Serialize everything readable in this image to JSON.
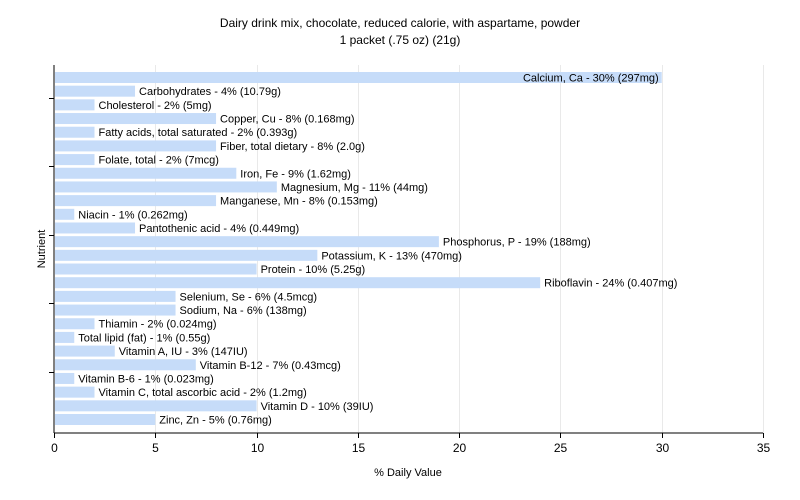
{
  "chart_data": {
    "type": "bar",
    "orientation": "horizontal",
    "title": "Dairy drink mix, chocolate, reduced calorie, with aspartame, powder",
    "subtitle": "1 packet (.75 oz) (21g)",
    "xlabel": "% Daily Value",
    "ylabel": "Nutrient",
    "xlim": [
      0,
      35
    ],
    "xticks": [
      0,
      5,
      10,
      15,
      20,
      25,
      30,
      35
    ],
    "grid": true,
    "bar_color": "#c6dcf9",
    "bars": [
      {
        "nutrient": "Calcium, Ca",
        "value": 30,
        "label": "Calcium, Ca - 30% (297mg)"
      },
      {
        "nutrient": "Carbohydrates",
        "value": 4,
        "label": "Carbohydrates - 4% (10.79g)"
      },
      {
        "nutrient": "Cholesterol",
        "value": 2,
        "label": "Cholesterol - 2% (5mg)"
      },
      {
        "nutrient": "Copper, Cu",
        "value": 8,
        "label": "Copper, Cu - 8% (0.168mg)"
      },
      {
        "nutrient": "Fatty acids, total saturated",
        "value": 2,
        "label": "Fatty acids, total saturated - 2% (0.393g)"
      },
      {
        "nutrient": "Fiber, total dietary",
        "value": 8,
        "label": "Fiber, total dietary - 8% (2.0g)"
      },
      {
        "nutrient": "Folate, total",
        "value": 2,
        "label": "Folate, total - 2% (7mcg)"
      },
      {
        "nutrient": "Iron, Fe",
        "value": 9,
        "label": "Iron, Fe - 9% (1.62mg)"
      },
      {
        "nutrient": "Magnesium, Mg",
        "value": 11,
        "label": "Magnesium, Mg - 11% (44mg)"
      },
      {
        "nutrient": "Manganese, Mn",
        "value": 8,
        "label": "Manganese, Mn - 8% (0.153mg)"
      },
      {
        "nutrient": "Niacin",
        "value": 1,
        "label": "Niacin - 1% (0.262mg)"
      },
      {
        "nutrient": "Pantothenic acid",
        "value": 4,
        "label": "Pantothenic acid - 4% (0.449mg)"
      },
      {
        "nutrient": "Phosphorus, P",
        "value": 19,
        "label": "Phosphorus, P - 19% (188mg)"
      },
      {
        "nutrient": "Potassium, K",
        "value": 13,
        "label": "Potassium, K - 13% (470mg)"
      },
      {
        "nutrient": "Protein",
        "value": 10,
        "label": "Protein - 10% (5.25g)"
      },
      {
        "nutrient": "Riboflavin",
        "value": 24,
        "label": "Riboflavin - 24% (0.407mg)"
      },
      {
        "nutrient": "Selenium, Se",
        "value": 6,
        "label": "Selenium, Se - 6% (4.5mcg)"
      },
      {
        "nutrient": "Sodium, Na",
        "value": 6,
        "label": "Sodium, Na - 6% (138mg)"
      },
      {
        "nutrient": "Thiamin",
        "value": 2,
        "label": "Thiamin - 2% (0.024mg)"
      },
      {
        "nutrient": "Total lipid (fat)",
        "value": 1,
        "label": "Total lipid (fat) - 1% (0.55g)"
      },
      {
        "nutrient": "Vitamin A, IU",
        "value": 3,
        "label": "Vitamin A, IU - 3% (147IU)"
      },
      {
        "nutrient": "Vitamin B-12",
        "value": 7,
        "label": "Vitamin B-12 - 7% (0.43mcg)"
      },
      {
        "nutrient": "Vitamin B-6",
        "value": 1,
        "label": "Vitamin B-6 - 1% (0.023mg)"
      },
      {
        "nutrient": "Vitamin C, total ascorbic acid",
        "value": 2,
        "label": "Vitamin C, total ascorbic acid - 2% (1.2mg)"
      },
      {
        "nutrient": "Vitamin D",
        "value": 10,
        "label": "Vitamin D - 10% (39IU)"
      },
      {
        "nutrient": "Zinc, Zn",
        "value": 5,
        "label": "Zinc, Zn - 5% (0.76mg)"
      }
    ]
  }
}
